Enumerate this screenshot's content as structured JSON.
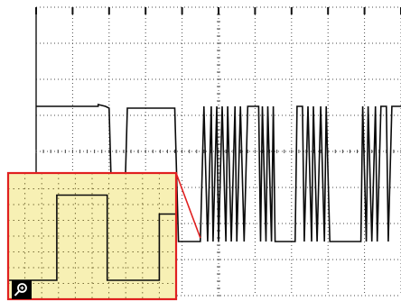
{
  "chart_data": {
    "type": "line",
    "title": "",
    "xlabel": "",
    "ylabel": "",
    "grid": true,
    "xlim": [
      0,
      10
    ],
    "ylim": [
      0,
      8
    ],
    "series": [
      {
        "points": [
          [
            0.0,
            5.25
          ],
          [
            1.7,
            5.25
          ],
          [
            1.7,
            5.3
          ],
          [
            1.9,
            5.25
          ],
          [
            2.0,
            5.2
          ],
          [
            2.1,
            1.6
          ],
          [
            2.4,
            1.6
          ],
          [
            2.5,
            5.2
          ],
          [
            3.8,
            5.2
          ],
          [
            3.9,
            1.5
          ],
          [
            4.5,
            1.5
          ],
          [
            4.6,
            5.25
          ],
          [
            4.7,
            1.5
          ],
          [
            4.8,
            5.25
          ],
          [
            4.85,
            1.5
          ],
          [
            4.95,
            5.25
          ],
          [
            5.0,
            1.5
          ],
          [
            5.1,
            5.25
          ],
          [
            5.2,
            1.5
          ],
          [
            5.25,
            5.25
          ],
          [
            5.35,
            1.5
          ],
          [
            5.45,
            5.25
          ],
          [
            5.5,
            1.5
          ],
          [
            5.6,
            5.25
          ],
          [
            5.7,
            1.5
          ],
          [
            5.8,
            5.25
          ],
          [
            6.1,
            5.25
          ],
          [
            6.15,
            1.5
          ],
          [
            6.2,
            5.25
          ],
          [
            6.3,
            1.5
          ],
          [
            6.35,
            5.25
          ],
          [
            6.45,
            1.5
          ],
          [
            6.5,
            5.25
          ],
          [
            6.55,
            1.5
          ],
          [
            7.1,
            1.5
          ],
          [
            7.15,
            5.25
          ],
          [
            7.3,
            5.25
          ],
          [
            7.35,
            1.5
          ],
          [
            7.45,
            5.25
          ],
          [
            7.55,
            1.5
          ],
          [
            7.6,
            5.25
          ],
          [
            7.7,
            1.5
          ],
          [
            7.8,
            5.25
          ],
          [
            7.9,
            1.5
          ],
          [
            7.95,
            5.25
          ],
          [
            8.05,
            1.5
          ],
          [
            8.9,
            1.5
          ],
          [
            8.95,
            5.25
          ],
          [
            9.05,
            1.5
          ],
          [
            9.1,
            5.25
          ],
          [
            9.2,
            1.5
          ],
          [
            9.3,
            5.25
          ],
          [
            9.35,
            1.5
          ],
          [
            9.45,
            5.25
          ],
          [
            9.6,
            5.25
          ],
          [
            9.65,
            1.5
          ],
          [
            9.75,
            5.25
          ],
          [
            10.0,
            5.25
          ]
        ]
      }
    ],
    "inset": {
      "xlim": [
        0,
        10
      ],
      "ylim": [
        0,
        8
      ],
      "series": [
        {
          "points": [
            [
              0.0,
              1.2
            ],
            [
              2.9,
              1.2
            ],
            [
              2.9,
              6.6
            ],
            [
              5.9,
              6.6
            ],
            [
              5.9,
              1.2
            ],
            [
              9.0,
              1.2
            ],
            [
              9.0,
              5.4
            ],
            [
              10.0,
              5.4
            ]
          ]
        }
      ],
      "zoom_source": [
        4.5,
        1.6
      ]
    }
  },
  "colors": {
    "background": "#ffffff",
    "grid": "#4a4a4a",
    "trace": "#0a0a0a",
    "inset_background": "#f7f0b4",
    "inset_border": "#e02020",
    "inset_grid": "#7a6f3a",
    "zoom_line": "#e02020"
  },
  "icons": {
    "zoom": "magnifier-icon"
  }
}
